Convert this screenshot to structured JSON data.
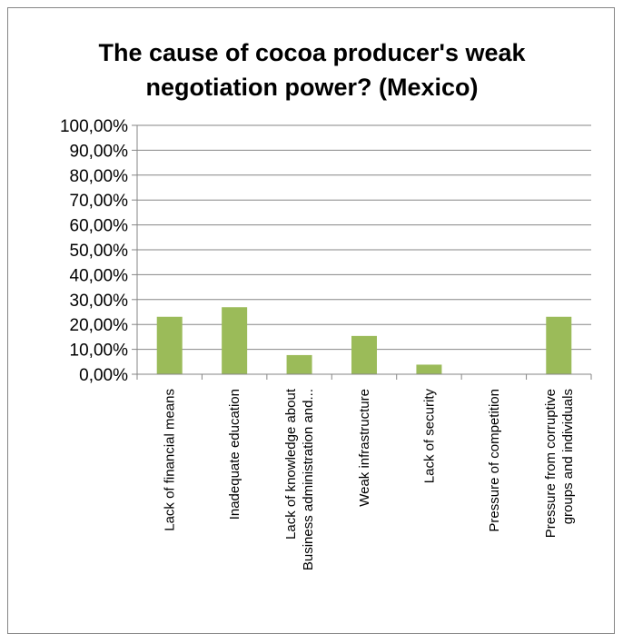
{
  "chart_data": {
    "type": "bar",
    "title": "The cause of cocoa producer's weak negotiation power? (Mexico)",
    "title_lines": [
      "The cause of cocoa producer's weak",
      "negotiation power? (Mexico)"
    ],
    "categories": [
      "Lack of financial means",
      "Inadequate education",
      "Lack of knowledge about Business administration and...",
      "Weak infrastructure",
      "Lack of security",
      "Pressure of competition",
      "Pressure from corruptive groups and individuals"
    ],
    "category_lines": [
      [
        "Lack of financial means"
      ],
      [
        "Inadequate education"
      ],
      [
        "Lack of knowledge about",
        "Business administration and..."
      ],
      [
        "Weak infrastructure"
      ],
      [
        "Lack of security"
      ],
      [
        "Pressure of competition"
      ],
      [
        "Pressure from corruptive",
        "groups and individuals"
      ]
    ],
    "values": [
      0.2308,
      0.2692,
      0.0769,
      0.1538,
      0.0385,
      0.0,
      0.2308
    ],
    "ylim": [
      0,
      1
    ],
    "yticks": [
      0,
      0.1,
      0.2,
      0.3,
      0.4,
      0.5,
      0.6,
      0.7,
      0.8,
      0.9,
      1.0
    ],
    "ytick_labels": [
      "0,00%",
      "10,00%",
      "20,00%",
      "30,00%",
      "40,00%",
      "50,00%",
      "60,00%",
      "70,00%",
      "80,00%",
      "90,00%",
      "100,00%"
    ],
    "xlabel": "",
    "ylabel": "",
    "grid": true,
    "legend": "none",
    "bar_color": "#9bbb59",
    "grid_color": "#868686"
  }
}
